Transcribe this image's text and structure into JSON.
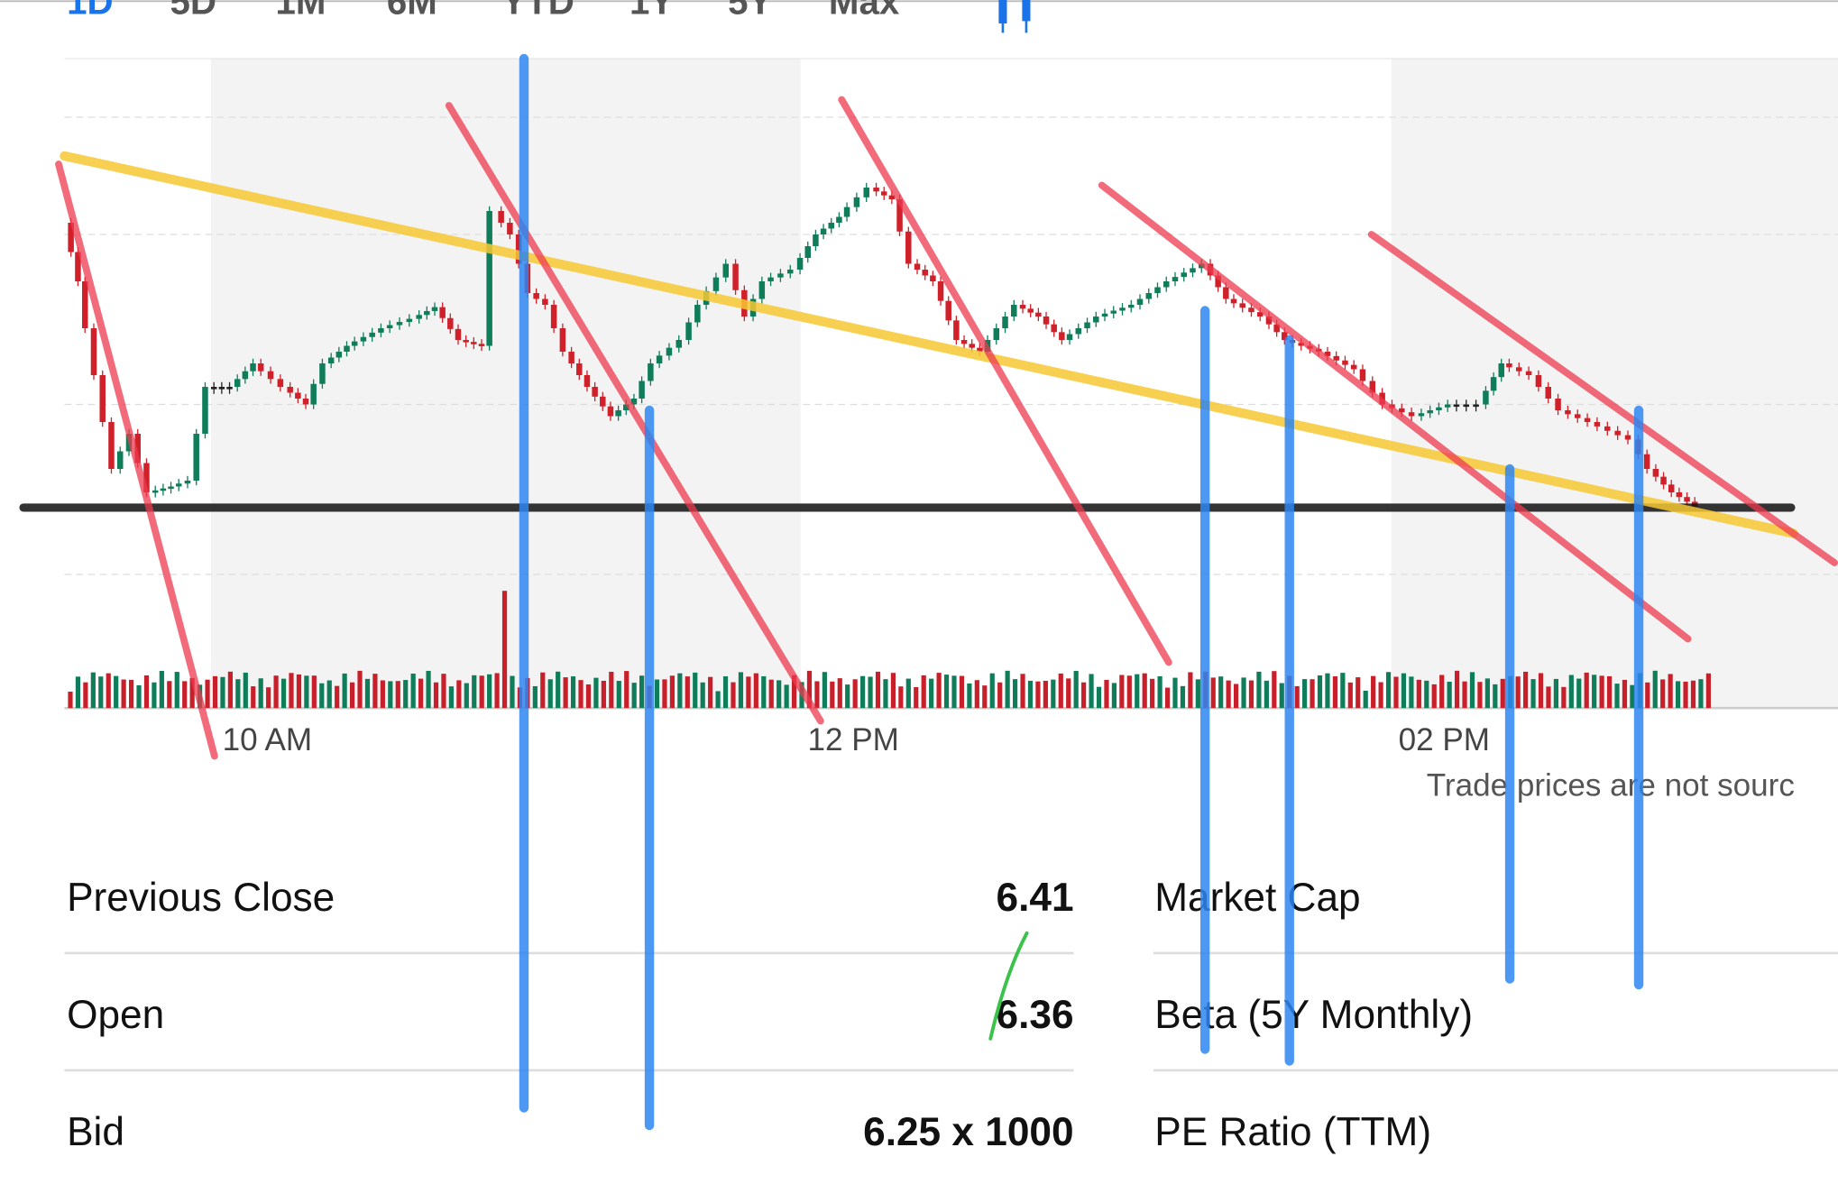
{
  "tabs": [
    "1D",
    "5D",
    "1M",
    "6M",
    "YTD",
    "1Y",
    "5Y",
    "Max"
  ],
  "chart": {
    "x_labels": [
      "10 AM",
      "12 PM",
      "02 PM"
    ],
    "note": "Trade prices are not sourc"
  },
  "stats": {
    "left": [
      {
        "label": "Previous Close",
        "value": "6.41"
      },
      {
        "label": "Open",
        "value": "6.36"
      },
      {
        "label": "Bid",
        "value": "6.25 x 1000"
      }
    ],
    "right": [
      {
        "label": "Market Cap"
      },
      {
        "label": "Beta (5Y Monthly)"
      },
      {
        "label": "PE Ratio (TTM)"
      }
    ]
  }
}
